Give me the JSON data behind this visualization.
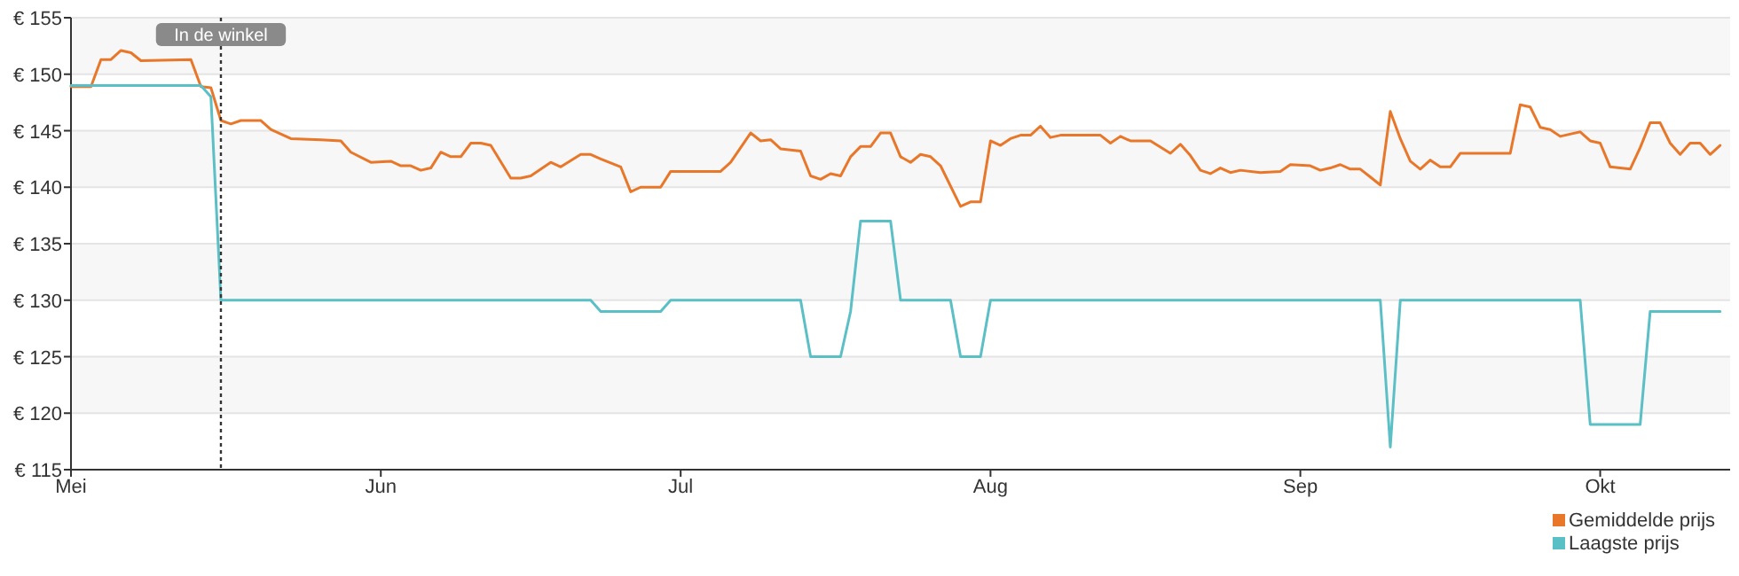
{
  "chart_data": {
    "type": "line",
    "xlim": [
      "--05-01",
      "--10-14"
    ],
    "xticks": [
      {
        "value": "--05-01",
        "label": "Mei"
      },
      {
        "value": "--06-01",
        "label": "Jun"
      },
      {
        "value": "--07-01",
        "label": "Jul"
      },
      {
        "value": "--08-01",
        "label": "Aug"
      },
      {
        "value": "--09-01",
        "label": "Sep"
      },
      {
        "value": "--10-01",
        "label": "Okt"
      }
    ],
    "ylim": [
      115,
      155
    ],
    "yticks": [
      {
        "value": 115,
        "label": "€ 115"
      },
      {
        "value": 120,
        "label": "€ 120"
      },
      {
        "value": 125,
        "label": "€ 125"
      },
      {
        "value": 130,
        "label": "€ 130"
      },
      {
        "value": 135,
        "label": "€ 135"
      },
      {
        "value": 140,
        "label": "€ 140"
      },
      {
        "value": 145,
        "label": "€ 145"
      },
      {
        "value": 150,
        "label": "€ 150"
      },
      {
        "value": 155,
        "label": "€ 155"
      }
    ],
    "grid": "y",
    "legend": "bottom right",
    "line_style": "solid",
    "ref_lines": [
      {
        "axis": "x",
        "value": "--05-16",
        "label": "In de winkel",
        "line_style": "dotted",
        "color": "#333333"
      }
    ],
    "series": [
      {
        "name": "Gemiddelde prijs",
        "color": "#e8772a",
        "x": [
          "--05-01",
          "--05-03",
          "--05-04",
          "--05-05",
          "--05-06",
          "--05-07",
          "--05-08",
          "--05-13",
          "--05-14",
          "--05-15",
          "--05-16",
          "--05-17",
          "--05-18",
          "--05-20",
          "--05-21",
          "--05-23",
          "--05-26",
          "--05-28",
          "--05-29",
          "--05-31",
          "--06-02",
          "--06-03",
          "--06-04",
          "--06-05",
          "--06-06",
          "--06-07",
          "--06-08",
          "--06-09",
          "--06-10",
          "--06-11",
          "--06-12",
          "--06-14",
          "--06-15",
          "--06-16",
          "--06-18",
          "--06-19",
          "--06-21",
          "--06-22",
          "--06-23",
          "--06-25",
          "--06-26",
          "--06-27",
          "--06-29",
          "--06-30",
          "--07-05",
          "--07-06",
          "--07-08",
          "--07-09",
          "--07-10",
          "--07-11",
          "--07-13",
          "--07-14",
          "--07-15",
          "--07-16",
          "--07-17",
          "--07-18",
          "--07-19",
          "--07-20",
          "--07-21",
          "--07-22",
          "--07-23",
          "--07-24",
          "--07-25",
          "--07-26",
          "--07-27",
          "--07-29",
          "--07-30",
          "--07-31",
          "--08-01",
          "--08-02",
          "--08-03",
          "--08-04",
          "--08-05",
          "--08-06",
          "--08-07",
          "--08-08",
          "--08-12",
          "--08-13",
          "--08-14",
          "--08-15",
          "--08-17",
          "--08-19",
          "--08-20",
          "--08-21",
          "--08-22",
          "--08-23",
          "--08-24",
          "--08-25",
          "--08-26",
          "--08-28",
          "--08-30",
          "--08-31",
          "--09-02",
          "--09-03",
          "--09-04",
          "--09-05",
          "--09-06",
          "--09-07",
          "--09-08",
          "--09-09",
          "--09-10",
          "--09-11",
          "--09-12",
          "--09-13",
          "--09-14",
          "--09-15",
          "--09-16",
          "--09-17",
          "--09-22",
          "--09-23",
          "--09-24",
          "--09-25",
          "--09-26",
          "--09-27",
          "--09-29",
          "--09-30",
          "--10-01",
          "--10-02",
          "--10-04",
          "--10-05",
          "--10-06",
          "--10-07",
          "--10-08",
          "--10-09",
          "--10-10",
          "--10-11",
          "--10-12",
          "--10-13"
        ],
        "values": [
          148.9,
          148.9,
          151.3,
          151.3,
          152.1,
          151.9,
          151.2,
          151.3,
          148.9,
          148.8,
          145.9,
          145.6,
          145.9,
          145.9,
          145.1,
          144.3,
          144.2,
          144.1,
          143.1,
          142.2,
          142.3,
          141.9,
          141.9,
          141.5,
          141.7,
          143.1,
          142.7,
          142.7,
          143.9,
          143.9,
          143.7,
          140.8,
          140.8,
          141.0,
          142.2,
          141.8,
          142.9,
          142.9,
          142.5,
          141.8,
          139.6,
          140.0,
          140.0,
          141.4,
          141.4,
          142.2,
          144.8,
          144.1,
          144.2,
          143.4,
          143.2,
          141.0,
          140.7,
          141.2,
          141.0,
          142.7,
          143.6,
          143.6,
          144.8,
          144.8,
          142.7,
          142.2,
          142.9,
          142.7,
          141.9,
          138.3,
          138.7,
          138.7,
          144.1,
          143.7,
          144.3,
          144.6,
          144.6,
          145.4,
          144.4,
          144.6,
          144.6,
          143.9,
          144.5,
          144.1,
          144.1,
          143.0,
          143.8,
          142.8,
          141.5,
          141.2,
          141.7,
          141.3,
          141.5,
          141.3,
          141.4,
          142.0,
          141.9,
          141.5,
          141.7,
          142.0,
          141.6,
          141.6,
          140.9,
          140.2,
          146.7,
          144.3,
          142.3,
          141.6,
          142.4,
          141.8,
          141.8,
          143.0,
          143.0,
          147.3,
          147.1,
          145.3,
          145.1,
          144.5,
          144.9,
          144.1,
          143.9,
          141.8,
          141.6,
          143.5,
          145.7,
          145.7,
          143.9,
          142.9,
          143.9,
          143.9,
          142.9,
          143.7
        ]
      },
      {
        "name": "Laagste prijs",
        "color": "#5bbfc6",
        "x": [
          "--05-01",
          "--05-14",
          "--05-15",
          "--05-16",
          "--06-22",
          "--06-23",
          "--06-29",
          "--06-30",
          "--07-13",
          "--07-14",
          "--07-17",
          "--07-18",
          "--07-19",
          "--07-22",
          "--07-23",
          "--07-28",
          "--07-29",
          "--07-31",
          "--08-01",
          "--09-09",
          "--09-10",
          "--09-11",
          "--09-29",
          "--09-30",
          "--10-05",
          "--10-06",
          "--10-13"
        ],
        "values": [
          149,
          149,
          148,
          130,
          130,
          129,
          129,
          130,
          130,
          125,
          125,
          129,
          137,
          137,
          130,
          130,
          125,
          125,
          130,
          130,
          117,
          130,
          130,
          119,
          119,
          129,
          129
        ]
      }
    ]
  }
}
